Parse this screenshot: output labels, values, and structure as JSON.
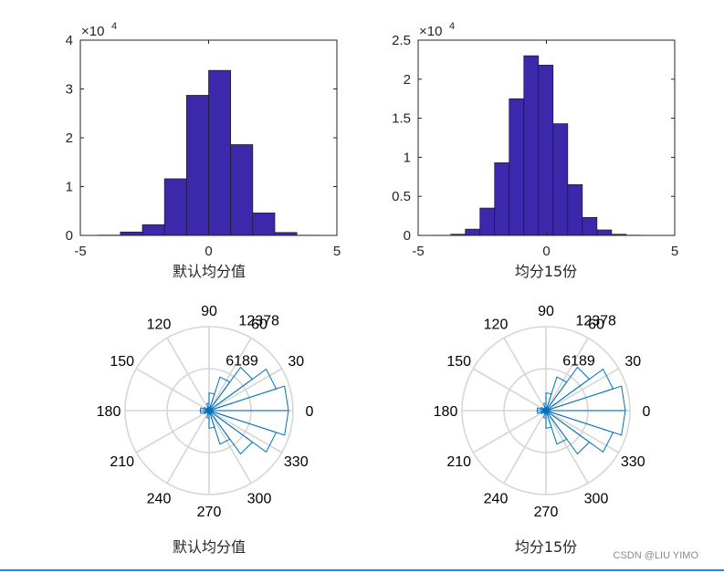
{
  "colors": {
    "hist_bar": "#3c28aa",
    "hist_edge": "#1a1a1a",
    "polar_line": "#0072bd",
    "grid": "#d6d6d6",
    "rule": "#1e88e5"
  },
  "watermark": "CSDN @LIU YIMO",
  "chart_data": [
    {
      "type": "bar",
      "subtype": "histogram",
      "xlabel": "默认均分值",
      "xlim": [
        -5,
        5
      ],
      "ylim": [
        0,
        40000
      ],
      "xticks": [
        "-5",
        "0",
        "5"
      ],
      "yticks": [
        "0",
        "1",
        "2",
        "3",
        "4"
      ],
      "exponent_label": "×10",
      "exponent_power": "4",
      "bin_edges": [
        -4.3,
        -3.44,
        -2.58,
        -1.72,
        -0.86,
        0,
        0.86,
        1.72,
        2.58,
        3.44,
        4.3
      ],
      "values": [
        60,
        700,
        2200,
        11600,
        28700,
        33800,
        18600,
        4600,
        600,
        40
      ]
    },
    {
      "type": "bar",
      "subtype": "histogram",
      "xlabel": "均分15份",
      "xlim": [
        -5,
        5
      ],
      "ylim": [
        0,
        25000
      ],
      "xticks": [
        "-5",
        "0",
        "5"
      ],
      "yticks": [
        "0",
        "0.5",
        "1",
        "1.5",
        "2",
        "2.5"
      ],
      "exponent_label": "×10",
      "exponent_power": "4",
      "bin_edges": [
        -4.3,
        -3.73,
        -3.16,
        -2.59,
        -2.02,
        -1.45,
        -0.88,
        -0.31,
        0.26,
        0.83,
        1.4,
        1.97,
        2.54,
        3.11,
        3.68,
        4.25
      ],
      "values": [
        20,
        150,
        800,
        3500,
        9300,
        17500,
        23000,
        21800,
        14300,
        6500,
        2300,
        700,
        150,
        30,
        10
      ]
    },
    {
      "type": "polar",
      "subtype": "rose",
      "xlabel": "默认均分值",
      "rmax": 12378,
      "rticks": [
        "6189",
        "12378"
      ],
      "theta_labels": [
        "0",
        "30",
        "60",
        "90",
        "120",
        "150",
        "180",
        "210",
        "240",
        "270",
        "300",
        "330"
      ],
      "bin_width_deg": 18,
      "bins": [
        {
          "center_deg": 9,
          "value": 11700
        },
        {
          "center_deg": 27,
          "value": 10400
        },
        {
          "center_deg": 45,
          "value": 7900
        },
        {
          "center_deg": 63,
          "value": 5200
        },
        {
          "center_deg": 81,
          "value": 2600
        },
        {
          "center_deg": 99,
          "value": 1100
        },
        {
          "center_deg": 117,
          "value": 450
        },
        {
          "center_deg": 135,
          "value": 300
        },
        {
          "center_deg": 153,
          "value": 800
        },
        {
          "center_deg": 171,
          "value": 1300
        },
        {
          "center_deg": 189,
          "value": 1300
        },
        {
          "center_deg": 207,
          "value": 800
        },
        {
          "center_deg": 225,
          "value": 300
        },
        {
          "center_deg": 243,
          "value": 450
        },
        {
          "center_deg": 261,
          "value": 1100
        },
        {
          "center_deg": 279,
          "value": 2600
        },
        {
          "center_deg": 297,
          "value": 5200
        },
        {
          "center_deg": 315,
          "value": 7900
        },
        {
          "center_deg": 333,
          "value": 10400
        },
        {
          "center_deg": 351,
          "value": 11700
        }
      ]
    },
    {
      "type": "polar",
      "subtype": "rose",
      "xlabel": "均分15份",
      "rmax": 12378,
      "rticks": [
        "6189",
        "12378"
      ],
      "theta_labels": [
        "0",
        "30",
        "60",
        "90",
        "120",
        "150",
        "180",
        "210",
        "240",
        "270",
        "300",
        "330"
      ],
      "bin_width_deg": 18,
      "bins": [
        {
          "center_deg": 9,
          "value": 11700
        },
        {
          "center_deg": 27,
          "value": 10400
        },
        {
          "center_deg": 45,
          "value": 7900
        },
        {
          "center_deg": 63,
          "value": 5200
        },
        {
          "center_deg": 81,
          "value": 2600
        },
        {
          "center_deg": 99,
          "value": 1100
        },
        {
          "center_deg": 117,
          "value": 450
        },
        {
          "center_deg": 135,
          "value": 300
        },
        {
          "center_deg": 153,
          "value": 800
        },
        {
          "center_deg": 171,
          "value": 1300
        },
        {
          "center_deg": 189,
          "value": 1300
        },
        {
          "center_deg": 207,
          "value": 800
        },
        {
          "center_deg": 225,
          "value": 300
        },
        {
          "center_deg": 243,
          "value": 450
        },
        {
          "center_deg": 261,
          "value": 1100
        },
        {
          "center_deg": 279,
          "value": 2600
        },
        {
          "center_deg": 297,
          "value": 5200
        },
        {
          "center_deg": 315,
          "value": 7900
        },
        {
          "center_deg": 333,
          "value": 10400
        },
        {
          "center_deg": 351,
          "value": 11700
        }
      ]
    }
  ]
}
